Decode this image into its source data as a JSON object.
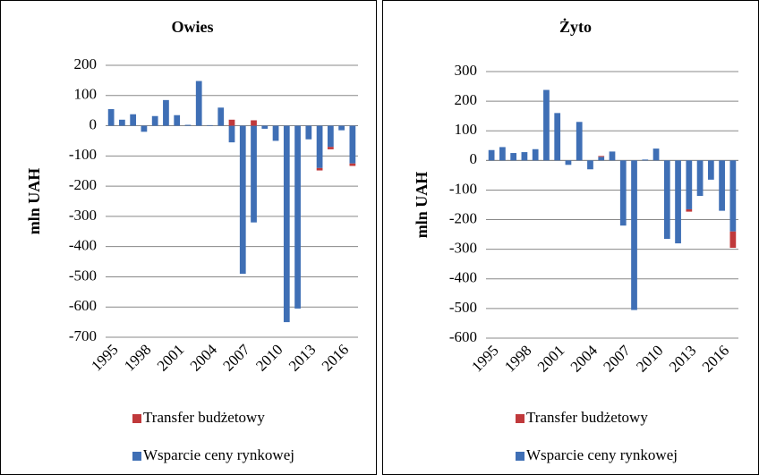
{
  "chart_data": [
    {
      "type": "bar",
      "stacked": true,
      "title": "Owies",
      "ylabel": "mln UAH",
      "categories": [
        "1995",
        null,
        null,
        "1998",
        null,
        null,
        "2001",
        null,
        null,
        "2004",
        null,
        null,
        "2007",
        null,
        null,
        "2010",
        null,
        null,
        "2013",
        null,
        null,
        "2016",
        null
      ],
      "series": [
        {
          "name": "Transfer budżetowy",
          "color": "#c0393b",
          "values": [
            0,
            0,
            0,
            0,
            0,
            0,
            0,
            0,
            0,
            0,
            0,
            20,
            0,
            18,
            0,
            0,
            0,
            0,
            0,
            -8,
            -8,
            0,
            -8
          ]
        },
        {
          "name": "Wsparcie ceny rynkowej",
          "color": "#3f6fb5",
          "values": [
            55,
            20,
            38,
            -20,
            32,
            85,
            35,
            3,
            148,
            2,
            60,
            -55,
            -490,
            -320,
            -10,
            -50,
            -650,
            -605,
            -45,
            -140,
            -70,
            -15,
            -125
          ]
        }
      ],
      "ylim": [
        -700,
        200
      ],
      "yticks": [
        -700,
        -600,
        -500,
        -400,
        -300,
        -200,
        -100,
        0,
        100,
        200
      ],
      "grid": true
    },
    {
      "type": "bar",
      "stacked": true,
      "title": "Żyto",
      "ylabel": "mln UAH",
      "categories": [
        "1995",
        null,
        null,
        "1998",
        null,
        null,
        "2001",
        null,
        null,
        "2004",
        null,
        null,
        "2007",
        null,
        null,
        "2010",
        null,
        null,
        "2013",
        null,
        null,
        "2016",
        null
      ],
      "series": [
        {
          "name": "Transfer budżetowy",
          "color": "#c0393b",
          "values": [
            0,
            0,
            0,
            0,
            0,
            0,
            0,
            0,
            0,
            0,
            3,
            0,
            0,
            0,
            0,
            0,
            0,
            0,
            -8,
            0,
            0,
            0,
            -55
          ]
        },
        {
          "name": "Wsparcie ceny rynkowej",
          "color": "#3f6fb5",
          "values": [
            35,
            45,
            25,
            28,
            38,
            238,
            160,
            -15,
            130,
            -30,
            12,
            30,
            -220,
            -505,
            3,
            40,
            -265,
            -280,
            -165,
            -120,
            -65,
            -170,
            -240
          ]
        }
      ],
      "ylim": [
        -600,
        300
      ],
      "yticks": [
        -600,
        -500,
        -400,
        -300,
        -200,
        -100,
        0,
        100,
        200,
        300
      ],
      "grid": true
    }
  ]
}
